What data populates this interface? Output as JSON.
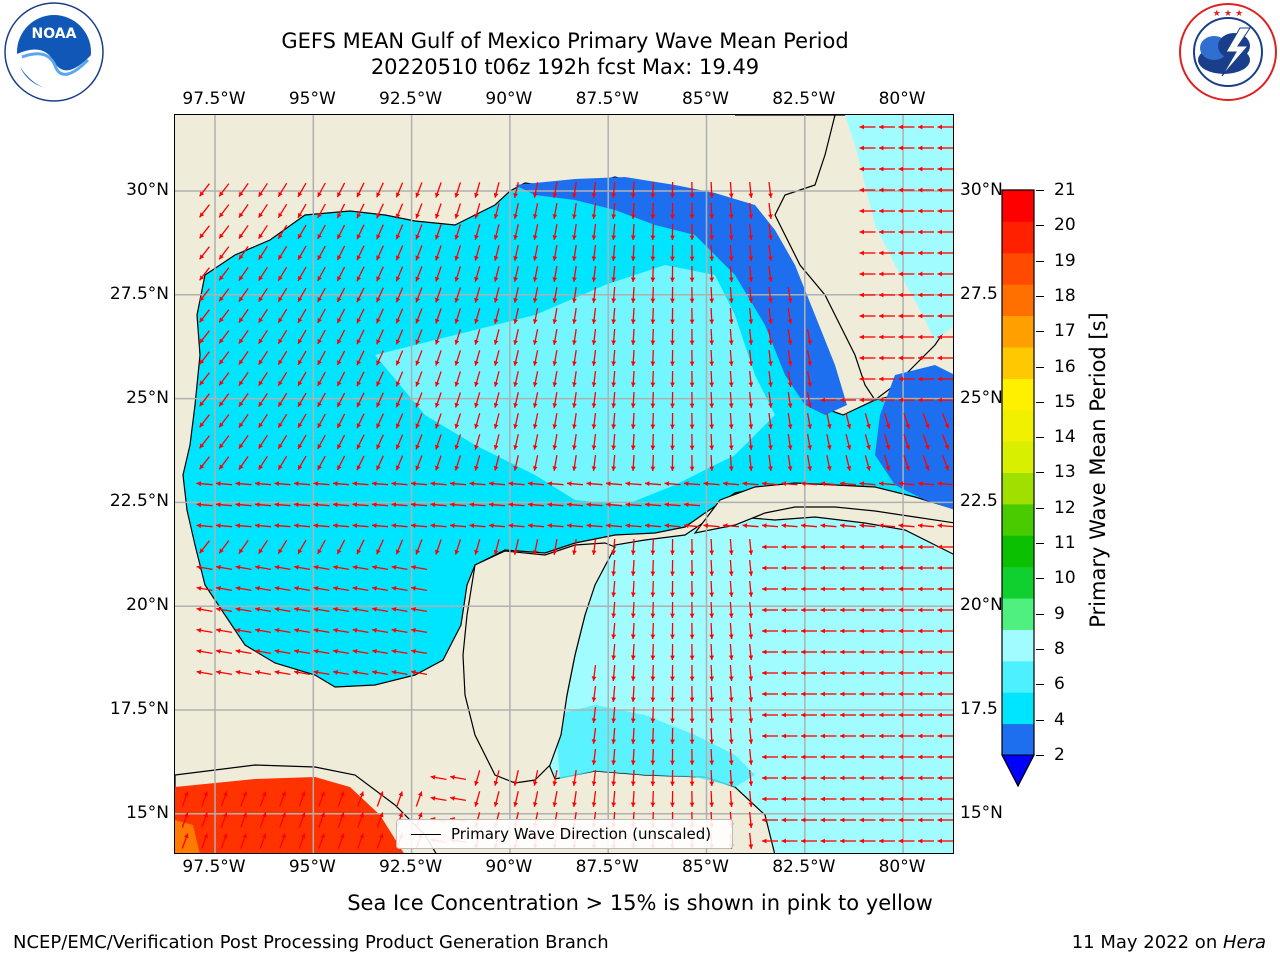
{
  "header": {
    "title_line1": "GEFS MEAN Gulf of Mexico Primary Wave Mean Period",
    "title_line2": "20220510 t06z 192h fcst   Max: 19.49"
  },
  "logos": {
    "left_name": "NOAA",
    "left_ring_text": "NATIONAL OCEANIC AND ATMOSPHERIC ADMINISTRATION · U.S. DEPARTMENT OF COMMERCE",
    "right_ring_text": "NATIONAL WEATHER SERVICE"
  },
  "axes": {
    "lon_labels": [
      "97.5°W",
      "95°W",
      "92.5°W",
      "90°W",
      "87.5°W",
      "85°W",
      "82.5°W",
      "80°W"
    ],
    "lat_labels_left": [
      "30°N",
      "27.5°N",
      "25°N",
      "22.5°N",
      "20°N",
      "17.5°N",
      "15°N"
    ],
    "lat_labels_right": [
      "30°N",
      "27.5",
      "25°N",
      "22.5",
      "20°N",
      "17.5",
      "15°N"
    ]
  },
  "map_legend": {
    "label": "Primary Wave Direction (unscaled)"
  },
  "colorbar": {
    "label": "Primary Wave Mean Period [s]",
    "ticks": [
      "21",
      "20",
      "19",
      "18",
      "17",
      "16",
      "15",
      "14",
      "13",
      "12",
      "11",
      "10",
      "9",
      "8",
      "6",
      "4",
      "2"
    ],
    "colors_bottom_to_top": [
      "#1e6ff0",
      "#00e5ff",
      "#4df0ff",
      "#a0fcff",
      "#50f080",
      "#10d030",
      "#0ac000",
      "#48cc00",
      "#a0e000",
      "#d8f000",
      "#f0f000",
      "#fff000",
      "#ffc800",
      "#ffa000",
      "#ff7000",
      "#ff4a00",
      "#ff2000",
      "#ff0000"
    ],
    "extend_color": "#0000ff"
  },
  "caption": "Sea Ice Concentration > 15% is shown in pink to yellow",
  "footer": {
    "left": "NCEP/EMC/Verification Post Processing Product Generation Branch",
    "right_prefix": "11 May 2022 on ",
    "right_italic": "Hera"
  },
  "colors": {
    "land": "#efecda",
    "arrow": "#ff0000",
    "grid": "#b0b0b0"
  }
}
